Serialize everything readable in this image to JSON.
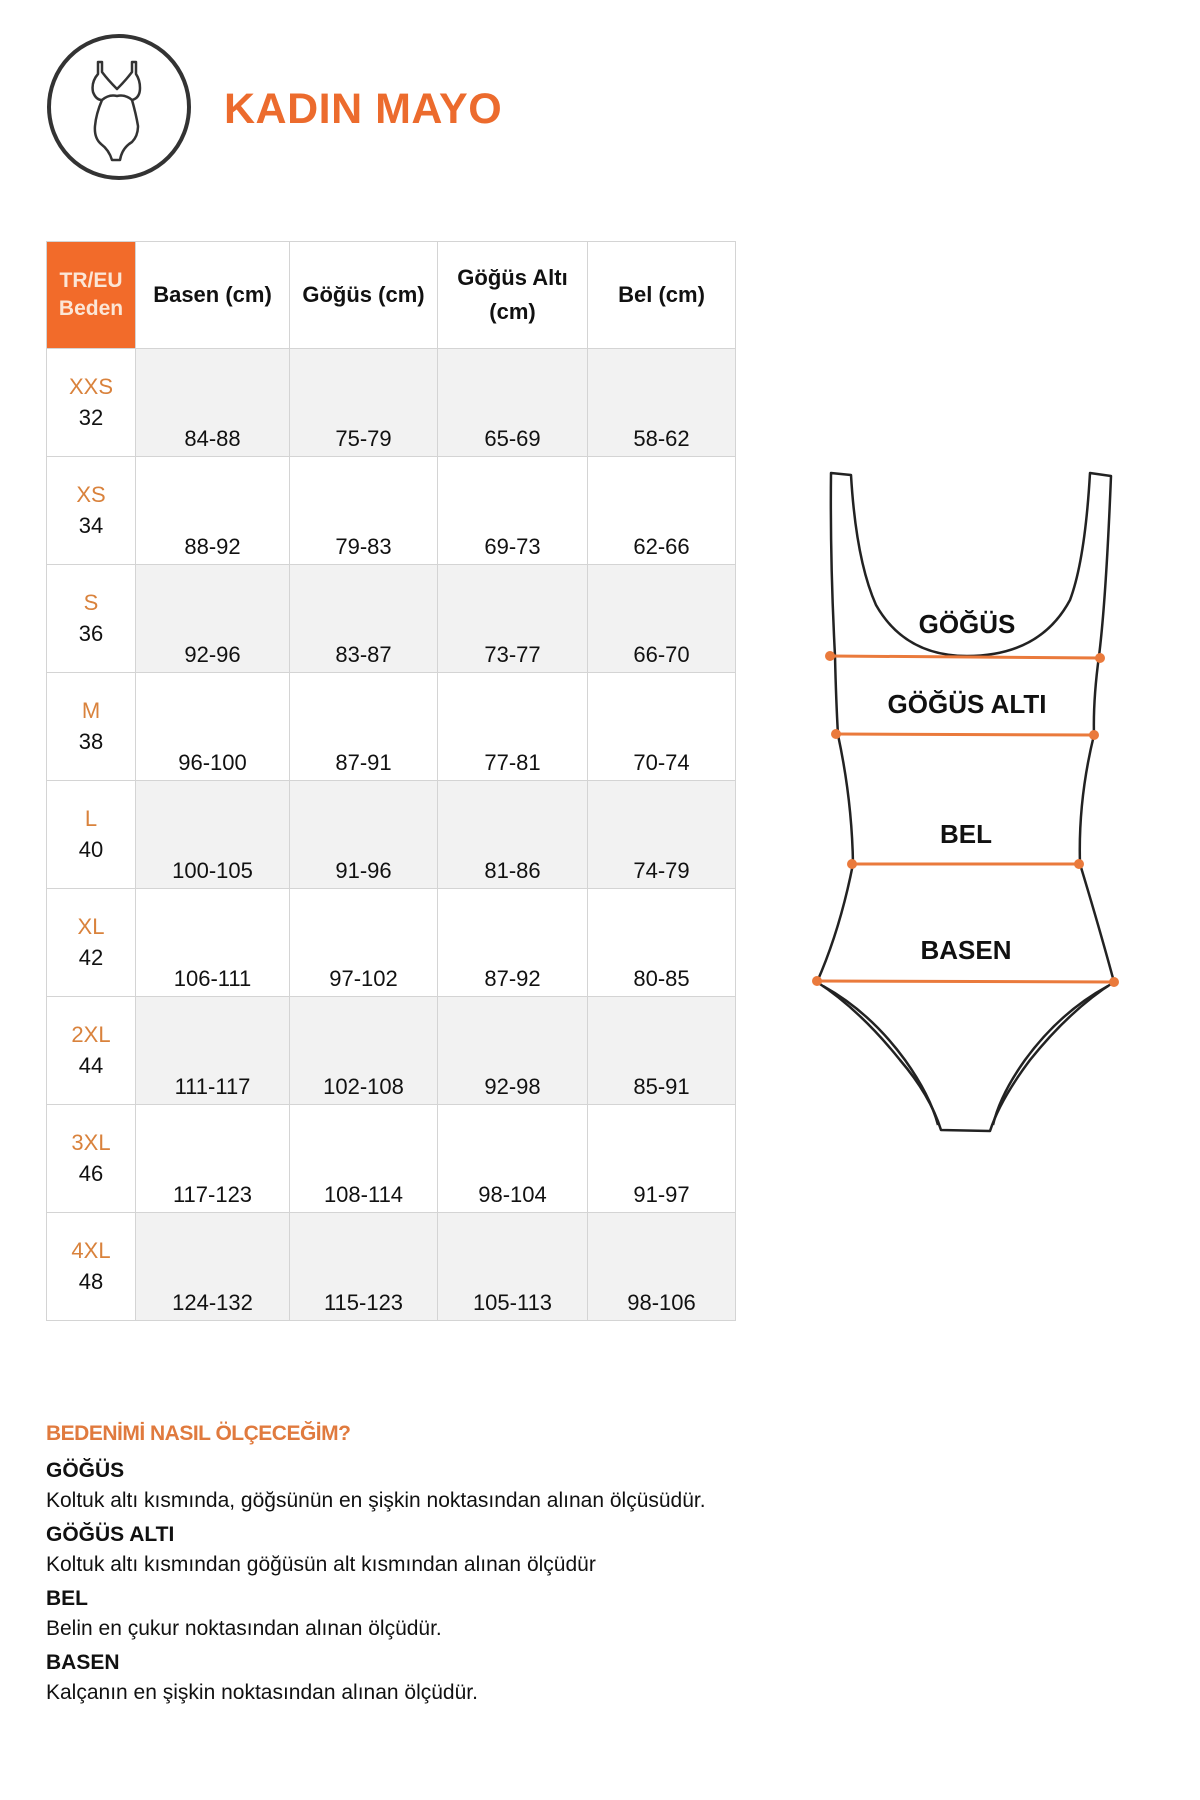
{
  "header": {
    "title": "KADIN MAYO",
    "icon": "swimsuit-icon"
  },
  "colors": {
    "accent": "#f26b2a",
    "size_label": "#d9823c",
    "row_shade": "#f2f2f2"
  },
  "table": {
    "headers": [
      "TR/EU Beden",
      "Basen (cm)",
      "Göğüs (cm)",
      "Göğüs Altı (cm)",
      "Bel (cm)"
    ],
    "rows": [
      {
        "size": "XXS",
        "eu": "32",
        "basen": "84-88",
        "gogus": "75-79",
        "gogus_alti": "65-69",
        "bel": "58-62"
      },
      {
        "size": "XS",
        "eu": "34",
        "basen": "88-92",
        "gogus": "79-83",
        "gogus_alti": "69-73",
        "bel": "62-66"
      },
      {
        "size": "S",
        "eu": "36",
        "basen": "92-96",
        "gogus": "83-87",
        "gogus_alti": "73-77",
        "bel": "66-70"
      },
      {
        "size": "M",
        "eu": "38",
        "basen": "96-100",
        "gogus": "87-91",
        "gogus_alti": "77-81",
        "bel": "70-74"
      },
      {
        "size": "L",
        "eu": "40",
        "basen": "100-105",
        "gogus": "91-96",
        "gogus_alti": "81-86",
        "bel": "74-79"
      },
      {
        "size": "XL",
        "eu": "42",
        "basen": "106-111",
        "gogus": "97-102",
        "gogus_alti": "87-92",
        "bel": "80-85"
      },
      {
        "size": "2XL",
        "eu": "44",
        "basen": "111-117",
        "gogus": "102-108",
        "gogus_alti": "92-98",
        "bel": "85-91"
      },
      {
        "size": "3XL",
        "eu": "46",
        "basen": "117-123",
        "gogus": "108-114",
        "gogus_alti": "98-104",
        "bel": "91-97"
      },
      {
        "size": "4XL",
        "eu": "48",
        "basen": "124-132",
        "gogus": "115-123",
        "gogus_alti": "105-113",
        "bel": "98-106"
      }
    ]
  },
  "diagram": {
    "labels": [
      "GÖĞÜS",
      "GÖĞÜS ALTI",
      "BEL",
      "BASEN"
    ]
  },
  "howto": {
    "heading": "BEDENİMİ NASIL ÖLÇECEĞİM?",
    "items": [
      {
        "term": "GÖĞÜS",
        "desc": "Koltuk altı kısmında, göğsünün en şişkin noktasından alınan ölçüsüdür."
      },
      {
        "term": "GÖĞÜS ALTI",
        "desc": "Koltuk altı kısmından göğüsün alt kısmından alınan ölçüdür"
      },
      {
        "term": "BEL",
        "desc": "Belin en çukur noktasından alınan ölçüdür."
      },
      {
        "term": "BASEN",
        "desc": "Kalçanın en şişkin noktasından alınan ölçüdür."
      }
    ]
  }
}
